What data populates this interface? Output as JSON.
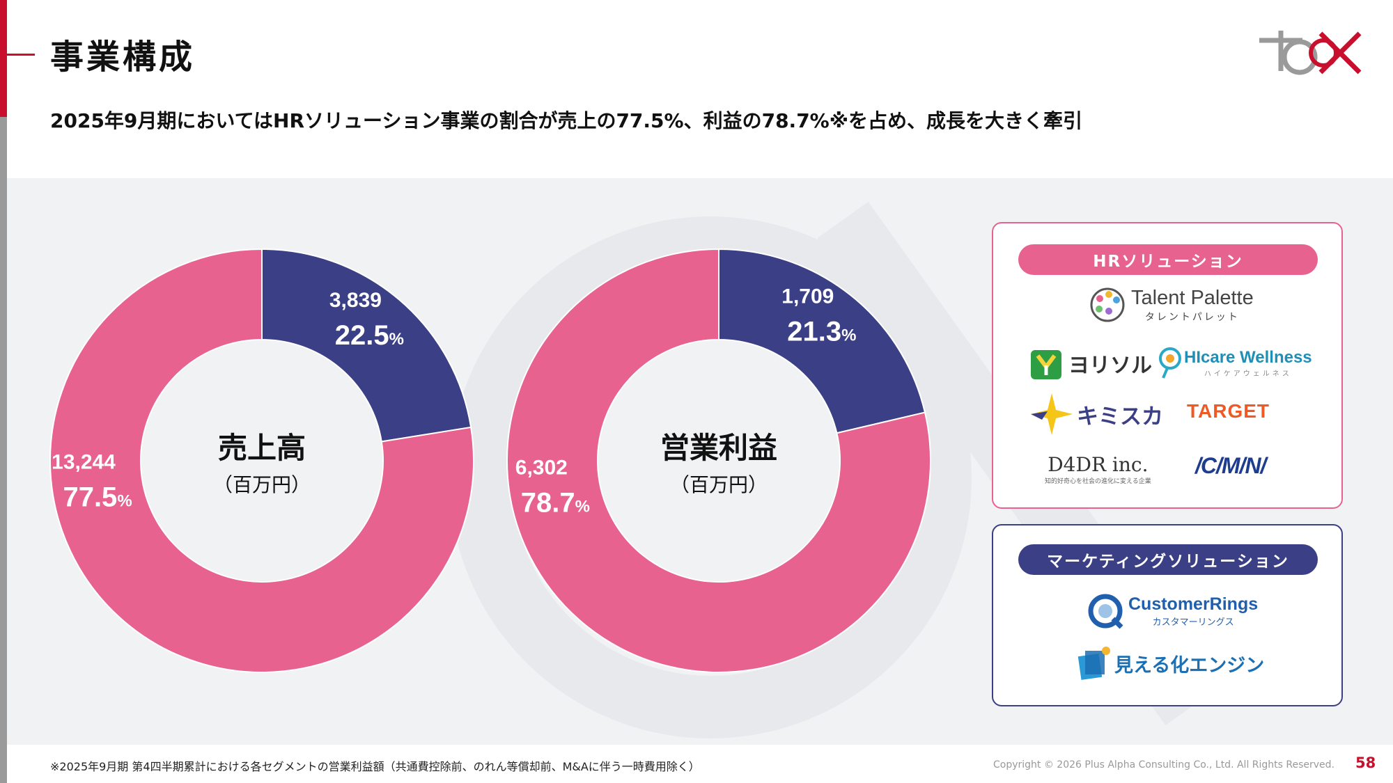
{
  "header": {
    "title": "事業構成",
    "subtitle": "2025年9月期においてはHRソリューション事業の割合が売上の77.5%、利益の78.7%※を占め、成長を大きく牽引"
  },
  "colors": {
    "hr": "#e8628f",
    "marketing": "#3b3f85",
    "accent": "#c8102e"
  },
  "chart_data": [
    {
      "type": "pie",
      "center_label": "売上高",
      "center_sublabel": "（百万円）",
      "slices": [
        {
          "value": 3839,
          "value_label": "3,839",
          "percent": "22.5",
          "color": "#3b3f85"
        },
        {
          "value": 13244,
          "value_label": "13,244",
          "percent": "77.5",
          "color": "#e8628f"
        }
      ]
    },
    {
      "type": "pie",
      "center_label": "営業利益",
      "center_sublabel": "（百万円）",
      "slices": [
        {
          "value": 1709,
          "value_label": "1,709",
          "percent": "21.3",
          "color": "#3b3f85"
        },
        {
          "value": 6302,
          "value_label": "6,302",
          "percent": "78.7",
          "color": "#e8628f"
        }
      ]
    }
  ],
  "percent_unit": "%",
  "segments": {
    "hr": {
      "label": "HRソリューション",
      "brands": {
        "talent_palette": "Talent Palette",
        "talent_palette_kana": "タレントパレット",
        "yorisol": "ヨリソル",
        "hicare": "HIcare Wellness",
        "hicare_kana": "ハイケアウェルネス",
        "kimisuka": "キミスカ",
        "target": "TARGET",
        "d4dr": "D4DR inc.",
        "d4dr_tagline": "知的好奇心を社会の進化に変える企業",
        "cmn": "/C/M/N/"
      }
    },
    "marketing": {
      "label": "マーケティングソリューション",
      "brands": {
        "customer_rings": "CustomerRings",
        "customer_rings_kana": "カスタマーリングス",
        "mieruka": "見える化エンジン"
      }
    }
  },
  "footer": {
    "footnote": "※2025年9月期 第4四半期累計における各セグメントの営業利益額（共通費控除前、のれん等償却前、M&Aに伴う一時費用除く）",
    "copyright": "Copyright © 2026 Plus Alpha Consulting Co., Ltd. All Rights Reserved.",
    "page": "58"
  }
}
